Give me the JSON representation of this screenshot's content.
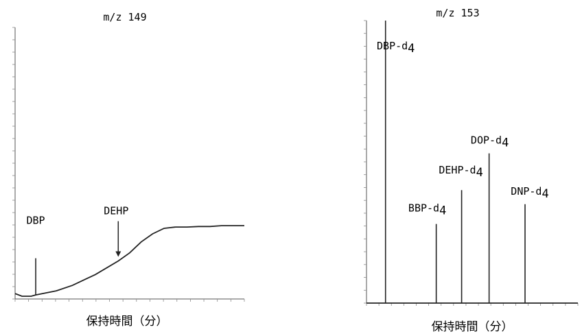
{
  "chart_data": [
    {
      "type": "line",
      "title": "m/z 149",
      "xlabel": "保持時間（分）",
      "ylabel": "",
      "grid": false,
      "xlim": [
        0,
        100
      ],
      "ylim": [
        0,
        100
      ],
      "baseline": {
        "x": [
          0,
          3,
          5,
          7,
          9,
          12,
          18,
          25,
          35,
          45,
          50,
          55,
          60,
          65,
          70,
          75,
          80,
          85,
          90,
          95,
          100
        ],
        "y": [
          2,
          1,
          1,
          1,
          1.5,
          2,
          3,
          5,
          9,
          14,
          17,
          21,
          24,
          26,
          26.5,
          26.5,
          26.7,
          26.7,
          27,
          27,
          27
        ]
      },
      "peaks": [
        {
          "label": "DBP",
          "x": 9,
          "y": 15
        },
        {
          "label": "DEHP",
          "x": 45,
          "y": 14
        }
      ]
    },
    {
      "type": "line",
      "title": "m/z 153",
      "xlabel": "保持時間（分）",
      "ylabel": "",
      "grid": false,
      "xlim": [
        0,
        100
      ],
      "ylim": [
        0,
        100
      ],
      "baseline": {
        "x": [
          0,
          100
        ],
        "y": [
          0,
          0
        ]
      },
      "peaks": [
        {
          "label": "DBP-d",
          "sub": "4",
          "x": 9,
          "y": 100
        },
        {
          "label": "BBP-d",
          "sub": "4",
          "x": 33,
          "y": 28
        },
        {
          "label": "DEHP-d",
          "sub": "4",
          "x": 45,
          "y": 40
        },
        {
          "label": "DOP-d",
          "sub": "4",
          "x": 58,
          "y": 53
        },
        {
          "label": "DNP-d",
          "sub": "4",
          "x": 75,
          "y": 35
        }
      ]
    }
  ]
}
